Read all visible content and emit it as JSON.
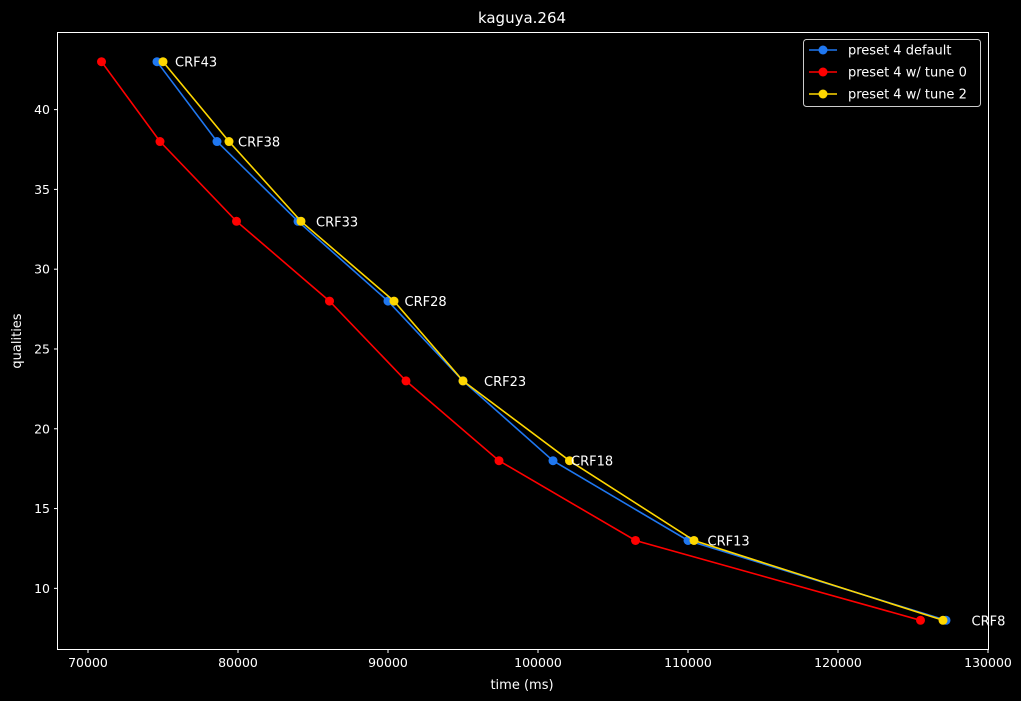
{
  "chart_data": {
    "type": "line",
    "title": "kaguya.264",
    "xlabel": "time (ms)",
    "ylabel": "qualities",
    "xlim": [
      68000,
      130000
    ],
    "ylim": [
      6.2,
      44.8
    ],
    "xticks": [
      70000,
      80000,
      90000,
      100000,
      110000,
      120000,
      130000
    ],
    "yticks": [
      10,
      15,
      20,
      25,
      30,
      35,
      40
    ],
    "y": [
      43,
      38,
      33,
      28,
      23,
      18,
      13,
      8
    ],
    "legend_position": "top-right",
    "series": [
      {
        "name": "preset 4 default",
        "color": "#1f77f0",
        "x": [
          74600,
          78600,
          84000,
          90000,
          95000,
          101000,
          110000,
          127200
        ]
      },
      {
        "name": "preset 4 w/ tune 0",
        "color": "#ff0000",
        "x": [
          70900,
          74800,
          79900,
          86100,
          91200,
          97400,
          106500,
          125500
        ]
      },
      {
        "name": "preset 4 w/ tune 2",
        "color": "#ffd700",
        "x": [
          75000,
          79400,
          84200,
          90400,
          95000,
          102100,
          110400,
          127000
        ]
      }
    ],
    "annotations": [
      {
        "text": "CRF43",
        "x": 75800,
        "y": 43
      },
      {
        "text": "CRF38",
        "x": 80000,
        "y": 38
      },
      {
        "text": "CRF33",
        "x": 85200,
        "y": 33
      },
      {
        "text": "CRF28",
        "x": 91100,
        "y": 28
      },
      {
        "text": "CRF23",
        "x": 96400,
        "y": 23
      },
      {
        "text": "CRF18",
        "x": 102200,
        "y": 18
      },
      {
        "text": "CRF13",
        "x": 111300,
        "y": 13
      },
      {
        "text": "CRF8",
        "x": 128900,
        "y": 8
      }
    ]
  }
}
